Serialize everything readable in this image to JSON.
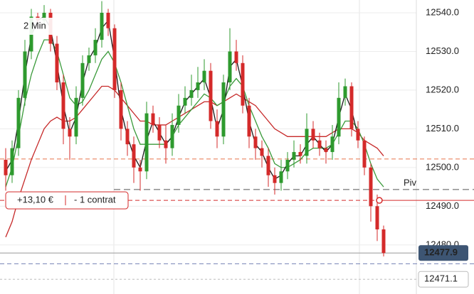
{
  "chart_data": {
    "type": "candlestick",
    "title": "2 Min",
    "open": [
      12502,
      12498,
      12505,
      12518,
      12530,
      12539,
      12538,
      12540,
      12532,
      12522,
      12510,
      12508,
      12518,
      12527,
      12529,
      12533,
      12540,
      12536,
      12520,
      12510,
      12506,
      12500,
      12499,
      12514,
      12511,
      12507,
      12505,
      12511,
      12516,
      12518,
      12520,
      12522,
      12525,
      12512,
      12508,
      12522,
      12530,
      12527,
      12516,
      12508,
      12505,
      12503,
      12498,
      12496,
      12499,
      12502,
      12504,
      12503,
      12510,
      12507,
      12505,
      12504,
      12508,
      12518,
      12521,
      12510,
      12507,
      12500,
      12490,
      12484
    ],
    "high": [
      12505,
      12507,
      12520,
      12533,
      12541,
      12540,
      12542,
      12541,
      12534,
      12524,
      12513,
      12521,
      12529,
      12531,
      12536,
      12543,
      12541,
      12537,
      12522,
      12512,
      12508,
      12502,
      12517,
      12516,
      12513,
      12511,
      12514,
      12519,
      12521,
      12524,
      12526,
      12528,
      12527,
      12515,
      12524,
      12536,
      12533,
      12529,
      12518,
      12510,
      12507,
      12505,
      12500,
      12502,
      12504,
      12507,
      12506,
      12514,
      12512,
      12509,
      12507,
      12511,
      12522,
      12523,
      12522,
      12512,
      12508,
      12501,
      12493,
      12485
    ],
    "low": [
      12494,
      12496,
      12503,
      12516,
      12528,
      12536,
      12536,
      12530,
      12520,
      12506,
      12502,
      12506,
      12516,
      12525,
      12527,
      12531,
      12534,
      12518,
      12507,
      12503,
      12496,
      12494,
      12497,
      12509,
      12505,
      12501,
      12503,
      12509,
      12514,
      12516,
      12518,
      12520,
      12510,
      12505,
      12506,
      12520,
      12525,
      12514,
      12505,
      12502,
      12500,
      12495,
      12493,
      12494,
      12497,
      12500,
      12501,
      12501,
      12505,
      12503,
      12501,
      12502,
      12506,
      12516,
      12508,
      12505,
      12498,
      12486,
      12481,
      12477
    ],
    "close": [
      12498,
      12505,
      12518,
      12530,
      12539,
      12538,
      12540,
      12532,
      12522,
      12510,
      12508,
      12518,
      12527,
      12529,
      12533,
      12540,
      12536,
      12520,
      12510,
      12506,
      12500,
      12499,
      12514,
      12511,
      12507,
      12505,
      12511,
      12516,
      12518,
      12520,
      12522,
      12525,
      12512,
      12508,
      12522,
      12530,
      12527,
      12516,
      12508,
      12505,
      12503,
      12498,
      12496,
      12499,
      12502,
      12504,
      12503,
      12510,
      12507,
      12505,
      12504,
      12508,
      12518,
      12521,
      12510,
      12507,
      12500,
      12490,
      12484,
      12477.9
    ],
    "up_color": "#2e9a2e",
    "down_color": "#d42a2a",
    "overlays": [
      {
        "color": "#c62828",
        "values": [
          12482,
          12486,
          12492,
          12497,
          12502,
          12506,
          12510,
          12512,
          12513,
          12512,
          12512,
          12513,
          12515,
          12517,
          12519,
          12521,
          12521,
          12520,
          12518,
          12516,
          12514,
          12512,
          12512,
          12511,
          12511,
          12511,
          12512,
          12513,
          12514,
          12515,
          12516,
          12517,
          12517,
          12516,
          12517,
          12518,
          12519,
          12518,
          12517,
          12516,
          12514,
          12512,
          12510,
          12509,
          12508,
          12508,
          12508,
          12508,
          12508,
          12508,
          12508,
          12509,
          12510,
          12510,
          12510,
          12509,
          12507,
          12506,
          12505,
          12503
        ]
      },
      {
        "color": "#3a9a3a",
        "values": [
          12495,
          12500,
          12508,
          12517,
          12524,
          12529,
          12533,
          12533,
          12530,
          12524,
          12518,
          12516,
          12517,
          12520,
          12524,
          12528,
          12530,
          12527,
          12522,
          12516,
          12510,
          12506,
          12506,
          12506,
          12506,
          12506,
          12508,
          12511,
          12513,
          12515,
          12517,
          12519,
          12518,
          12516,
          12517,
          12521,
          12523,
          12521,
          12516,
          12512,
          12508,
          12505,
          12501,
          12500,
          12500,
          12501,
          12502,
          12504,
          12505,
          12505,
          12505,
          12506,
          12509,
          12512,
          12512,
          12510,
          12506,
          12501,
          12497,
          12495
        ]
      },
      {
        "color": "#1a1a1a",
        "values": [
          12499,
          12502,
          12512,
          12524,
          12534,
          12538,
          12539,
          12536,
          12527,
          12516,
          12509,
          12513,
          12522,
          12528,
          12531,
          12536,
          12538,
          12528,
          12515,
          12508,
          12503,
          12500,
          12507,
          12512,
          12509,
          12506,
          12508,
          12513,
          12517,
          12519,
          12521,
          12523,
          12518,
          12510,
          12515,
          12526,
          12528,
          12521,
          12512,
          12506,
          12504,
          12500,
          12497,
          12498,
          12501,
          12503,
          12503,
          12506,
          12508,
          12506,
          12504,
          12506,
          12513,
          12519,
          12515,
          12508,
          null,
          null,
          null,
          null
        ]
      }
    ],
    "ylim": [
      12467.3,
      12543.3
    ],
    "yticks": [
      {
        "value": 12540,
        "label": "12540.0"
      },
      {
        "value": 12530,
        "label": "12530.0"
      },
      {
        "value": 12520,
        "label": "12520.0"
      },
      {
        "value": 12510,
        "label": "12510.0"
      },
      {
        "value": 12500,
        "label": "12500.0"
      },
      {
        "value": 12490,
        "label": "12490.0"
      },
      {
        "value": 12480,
        "label": "12480.0"
      }
    ],
    "grid": true,
    "pivot": {
      "label": "Piv",
      "value": 12494.3
    },
    "position": {
      "pnl": "+13,10 €",
      "size": "- 1 contrat",
      "value": 12491.5
    },
    "last_price": 12477.9,
    "marker_price": 12471.1,
    "levels": [
      {
        "value": 12502.2,
        "color": "#e8744a"
      },
      {
        "value": 12475.1,
        "color": "#7a86b8"
      }
    ]
  }
}
